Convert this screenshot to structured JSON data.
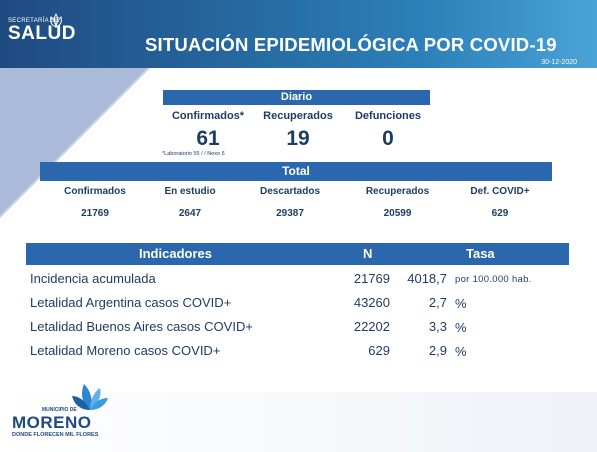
{
  "header": {
    "brand_small": "SECRETARÍA DE",
    "brand": "SALUD",
    "title": "SITUACIÓN EPIDEMIOLÓGICA POR COVID-19",
    "date": "30-12-2020"
  },
  "daily": {
    "label": "Diario",
    "columns": [
      {
        "label": "Confirmados*",
        "value": "61"
      },
      {
        "label": "Recuperados",
        "value": "19"
      },
      {
        "label": "Defunciones",
        "value": "0"
      }
    ],
    "note": "*Laboratorio 55 / / Nexo 6"
  },
  "total": {
    "label": "Total",
    "columns": [
      {
        "label": "Confirmados",
        "value": "21769"
      },
      {
        "label": "En estudio",
        "value": "2647"
      },
      {
        "label": "Descartados",
        "value": "29387"
      },
      {
        "label": "Recuperados",
        "value": "20599"
      },
      {
        "label": "Def. COVID+",
        "value": "629"
      }
    ]
  },
  "indicators": {
    "headers": {
      "name": "Indicadores",
      "n": "N",
      "rate": "Tasa"
    },
    "rows": [
      {
        "label": "Incidencia acumulada",
        "n": "21769",
        "rate": "4018,7",
        "unit": "por 100.000 hab."
      },
      {
        "label": "Letalidad Argentina casos COVID+",
        "n": "43260",
        "rate": "2,7",
        "unit": "%"
      },
      {
        "label": "Letalidad Buenos Aires casos COVID+",
        "n": "22202",
        "rate": "3,3",
        "unit": "%"
      },
      {
        "label": "Letalidad Moreno casos COVID+",
        "n": "629",
        "rate": "2,9",
        "unit": "%"
      }
    ]
  },
  "footer": {
    "muni": "MUNICIPIO DE",
    "name": "MORENO",
    "tagline": "DONDE FLORECEN MIL FLORES"
  },
  "colors": {
    "header_band": "#2c7fb8",
    "bar": "#2a67ad",
    "text": "#1f3d63"
  }
}
